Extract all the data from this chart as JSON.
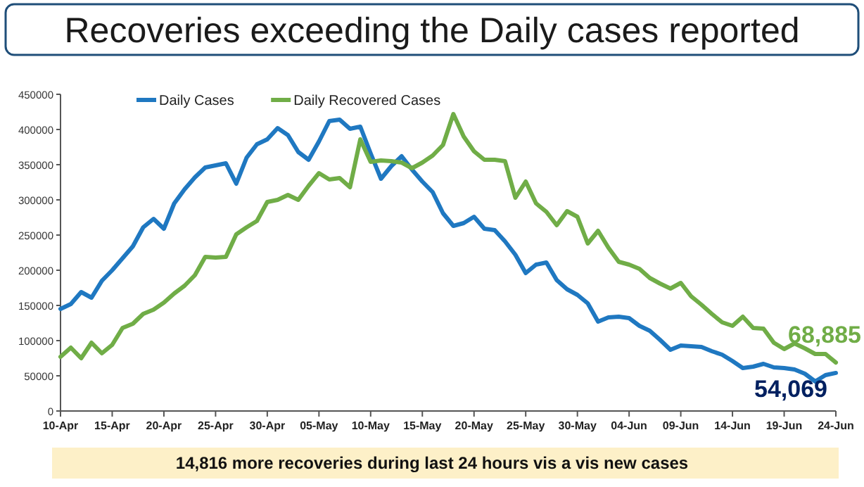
{
  "chart_data": {
    "type": "line",
    "title": "Recoveries exceeding the Daily cases reported",
    "categories": [
      "10-Apr",
      null,
      null,
      null,
      null,
      "15-Apr",
      null,
      null,
      null,
      null,
      "20-Apr",
      null,
      null,
      null,
      null,
      "25-Apr",
      null,
      null,
      null,
      null,
      "30-Apr",
      null,
      null,
      null,
      null,
      "05-May",
      null,
      null,
      null,
      null,
      "10-May",
      null,
      null,
      null,
      null,
      "15-May",
      null,
      null,
      null,
      null,
      "20-May",
      null,
      null,
      null,
      null,
      "25-May",
      null,
      null,
      null,
      null,
      "30-May",
      null,
      null,
      null,
      null,
      "04-Jun",
      null,
      null,
      null,
      null,
      "09-Jun",
      null,
      null,
      null,
      null,
      "14-Jun",
      null,
      null,
      null,
      null,
      "19-Jun",
      null,
      null,
      null,
      null,
      "24-Jun"
    ],
    "series": [
      {
        "name": "Daily Cases",
        "color": "#1f78c1",
        "values": [
          145000,
          152000,
          169000,
          161000,
          185000,
          200000,
          217000,
          234000,
          261000,
          273000,
          259000,
          295000,
          315000,
          332000,
          346000,
          349000,
          352000,
          323000,
          360000,
          379000,
          386000,
          402000,
          392000,
          368000,
          357000,
          383000,
          412000,
          414000,
          401000,
          404000,
          366000,
          330000,
          348000,
          362000,
          343000,
          326000,
          311000,
          281000,
          263000,
          267000,
          276000,
          259000,
          257000,
          241000,
          222000,
          196000,
          208000,
          211000,
          186000,
          173000,
          165000,
          153000,
          127000,
          133000,
          134000,
          132000,
          121000,
          114000,
          101000,
          87000,
          93000,
          92000,
          91000,
          85000,
          80000,
          71000,
          61000,
          63000,
          67000,
          62000,
          61000,
          59000,
          53000,
          42000,
          51000,
          54069
        ],
        "value_labels": [
          null,
          null,
          null,
          null,
          null,
          null,
          null,
          null,
          null,
          null,
          null,
          null,
          null,
          null,
          null,
          null,
          null,
          null,
          null,
          null,
          null,
          null,
          null,
          null,
          null,
          null,
          null,
          null,
          null,
          null,
          null,
          null,
          null,
          null,
          null,
          null,
          null,
          null,
          null,
          null,
          null,
          null,
          null,
          null,
          null,
          null,
          null,
          null,
          null,
          null,
          null,
          null,
          null,
          null,
          null,
          null,
          null,
          null,
          null,
          null,
          null,
          null,
          null,
          null,
          null,
          null,
          null,
          null,
          null,
          null,
          null,
          null,
          null,
          null,
          null,
          "54,069"
        ]
      },
      {
        "name": "Daily Recovered Cases",
        "color": "#70ad47",
        "values": [
          77000,
          90000,
          75000,
          97000,
          82000,
          94000,
          118000,
          124000,
          138000,
          144000,
          154000,
          167000,
          178000,
          193000,
          219000,
          218000,
          219000,
          251000,
          261000,
          270000,
          297000,
          300000,
          307000,
          300000,
          320000,
          338000,
          329000,
          331000,
          318000,
          386000,
          354000,
          356000,
          355000,
          353000,
          345000,
          353000,
          363000,
          378000,
          422000,
          390000,
          369000,
          357000,
          357000,
          355000,
          303000,
          326000,
          295000,
          283000,
          264000,
          284000,
          276000,
          238000,
          256000,
          232000,
          212000,
          208000,
          202000,
          189000,
          181000,
          174000,
          182000,
          163000,
          151000,
          138000,
          126000,
          121000,
          134000,
          118000,
          117000,
          97000,
          88000,
          96000,
          89000,
          81000,
          81000,
          68885
        ],
        "value_labels": [
          null,
          null,
          null,
          null,
          null,
          null,
          null,
          null,
          null,
          null,
          null,
          null,
          null,
          null,
          null,
          null,
          null,
          null,
          null,
          null,
          null,
          null,
          null,
          null,
          null,
          null,
          null,
          null,
          null,
          null,
          null,
          null,
          null,
          null,
          null,
          null,
          null,
          null,
          null,
          null,
          null,
          null,
          null,
          null,
          null,
          null,
          null,
          null,
          null,
          null,
          null,
          null,
          null,
          null,
          null,
          null,
          null,
          null,
          null,
          null,
          null,
          null,
          null,
          null,
          null,
          null,
          null,
          null,
          null,
          null,
          null,
          null,
          null,
          null,
          null,
          "68,885"
        ]
      }
    ],
    "ylim": [
      0,
      450000
    ],
    "yticks": [
      0,
      50000,
      100000,
      150000,
      200000,
      250000,
      300000,
      350000,
      400000,
      450000
    ],
    "legend": "top",
    "marker": "none",
    "line_style": "solid",
    "annotations": [
      "14,816 more recoveries during last 24 hours vis a vis new cases"
    ]
  }
}
